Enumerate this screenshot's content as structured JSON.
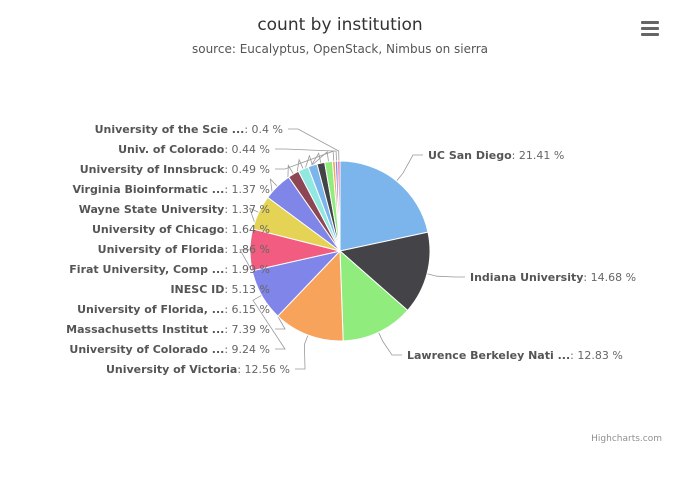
{
  "chart_data": {
    "type": "pie",
    "title": "count by institution",
    "subtitle": "source: Eucalyptus, OpenStack, Nimbus on sierra",
    "unit": "%",
    "slices": [
      {
        "name": "UC San Diego",
        "value": 21.41,
        "color": "#7cb5ec"
      },
      {
        "name": "Indiana University",
        "value": 14.68,
        "color": "#434348"
      },
      {
        "name": "Lawrence Berkeley Nati ...",
        "value": 12.83,
        "color": "#90ed7d"
      },
      {
        "name": "University of Victoria",
        "value": 12.56,
        "color": "#f7a35c"
      },
      {
        "name": "University of Colorado ...",
        "value": 9.24,
        "color": "#8085e9"
      },
      {
        "name": "Massachusetts Institut ...",
        "value": 7.39,
        "color": "#f15c80"
      },
      {
        "name": "University of Florida, ...",
        "value": 6.15,
        "color": "#e4d354"
      },
      {
        "name": "INESC ID",
        "value": 5.13,
        "color": "#8085e8"
      },
      {
        "name": "Firat University, Comp ...",
        "value": 1.99,
        "color": "#8d4653"
      },
      {
        "name": "University of Florida",
        "value": 1.86,
        "color": "#91e8e1"
      },
      {
        "name": "University of Chicago",
        "value": 1.64,
        "color": "#7cb5ec"
      },
      {
        "name": "Wayne State University",
        "value": 1.37,
        "color": "#434348"
      },
      {
        "name": "Virginia Bioinformatic ...",
        "value": 1.37,
        "color": "#90ed7d"
      },
      {
        "name": "University of Innsbruck",
        "value": 0.49,
        "color": "#f7a35c"
      },
      {
        "name": "Univ. of Colorado",
        "value": 0.44,
        "color": "#8085e9"
      },
      {
        "name": "University of the Scie ...",
        "value": 0.4,
        "color": "#f15c80"
      }
    ]
  },
  "credits": "Highcharts.com",
  "menu_icon": "hamburger-menu-icon"
}
